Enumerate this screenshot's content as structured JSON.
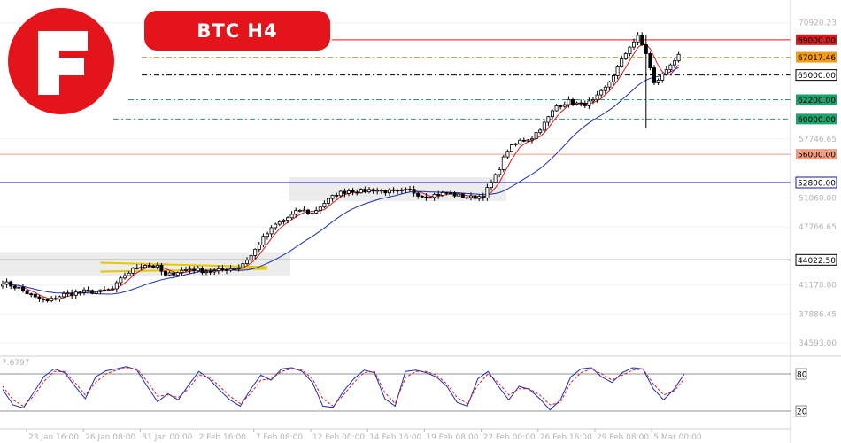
{
  "brand": {
    "color": "#e4141b"
  },
  "title": "BTC  H4",
  "chart_data": {
    "type": "candlestick",
    "symbol": "BTC",
    "timeframe": "H4",
    "price_ticks": [
      "70920.23",
      "57746.65",
      "51060.00",
      "47766.65",
      "41178.80",
      "37886.45",
      "34593.00"
    ],
    "price_range": [
      33300,
      72500
    ],
    "levels": [
      {
        "label": "69000.00",
        "price": 69000,
        "color": "#d9191e",
        "style": "solid"
      },
      {
        "label": "67017.46",
        "price": 67017,
        "color": "#f59b12",
        "style": "dashdot"
      },
      {
        "label": "65000.00",
        "price": 65000,
        "color": "#000000",
        "style": "dashdot"
      },
      {
        "label": "62200.00",
        "price": 62200,
        "color": "#1aa36a",
        "style": "dashdot"
      },
      {
        "label": "60000.00",
        "price": 60000,
        "color": "#1aa36a",
        "style": "dashdot"
      },
      {
        "label": "56000.00",
        "price": 56000,
        "color": "#f59c7f",
        "style": "solid"
      },
      {
        "label": "52800.00",
        "price": 52800,
        "color": "#1515b0",
        "style": "solid"
      },
      {
        "label": "44022.50",
        "price": 44022,
        "color": "#000000",
        "style": "solid"
      }
    ],
    "time_labels": [
      "23 Jan 16:00",
      "26 Jan 08:00",
      "31 Jan 00:00",
      "2 Feb 16:00",
      "7 Feb 08:00",
      "12 Feb 00:00",
      "14 Feb 16:00",
      "19 Feb 08:00",
      "22 Feb 00:00",
      "26 Feb 16:00",
      "29 Feb 08:00",
      "5 Mar 00:00"
    ],
    "price_path": [
      [
        0,
        41500
      ],
      [
        4,
        40800
      ],
      [
        8,
        39700
      ],
      [
        11,
        39300
      ],
      [
        15,
        40100
      ],
      [
        20,
        40400
      ],
      [
        24,
        40400
      ],
      [
        27,
        40700
      ],
      [
        30,
        42300
      ],
      [
        33,
        43200
      ],
      [
        35,
        43500
      ],
      [
        38,
        43200
      ],
      [
        40,
        42200
      ],
      [
        43,
        42700
      ],
      [
        46,
        43000
      ],
      [
        49,
        42800
      ],
      [
        52,
        42700
      ],
      [
        55,
        43000
      ],
      [
        58,
        43200
      ],
      [
        61,
        44500
      ],
      [
        64,
        46500
      ],
      [
        67,
        48000
      ],
      [
        70,
        48800
      ],
      [
        73,
        49700
      ],
      [
        76,
        49300
      ],
      [
        79,
        50500
      ],
      [
        82,
        51500
      ],
      [
        85,
        51900
      ],
      [
        88,
        51800
      ],
      [
        91,
        52000
      ],
      [
        94,
        51800
      ],
      [
        97,
        51700
      ],
      [
        100,
        51900
      ],
      [
        103,
        51300
      ],
      [
        106,
        51400
      ],
      [
        109,
        51600
      ],
      [
        112,
        51300
      ],
      [
        115,
        51100
      ],
      [
        118,
        51300
      ],
      [
        121,
        53500
      ],
      [
        124,
        56500
      ],
      [
        127,
        57500
      ],
      [
        130,
        57900
      ],
      [
        133,
        59500
      ],
      [
        136,
        61500
      ],
      [
        139,
        62000
      ],
      [
        142,
        61600
      ],
      [
        145,
        62000
      ],
      [
        148,
        63500
      ],
      [
        151,
        65800
      ],
      [
        154,
        68300
      ],
      [
        156,
        69300
      ],
      [
        158,
        67500
      ],
      [
        160,
        64000
      ],
      [
        162,
        65000
      ],
      [
        164,
        66300
      ],
      [
        166,
        67100
      ]
    ],
    "wicks": [
      {
        "x": 158,
        "high": 69500,
        "low": 59000
      }
    ],
    "consolidation_zones": [
      {
        "x": [
          0,
          70
        ],
        "price": [
          42200,
          44900
        ]
      },
      {
        "x": [
          71,
          123
        ],
        "price": [
          50700,
          53400
        ]
      }
    ],
    "triangle": {
      "color": "#e6c800",
      "upper": [
        [
          24,
          43700
        ],
        [
          65,
          43200
        ]
      ],
      "lower": [
        [
          24,
          42700
        ],
        [
          65,
          43000
        ]
      ]
    },
    "stochastic": {
      "levels": [
        {
          "label": "80",
          "value": 80
        },
        {
          "label": "20",
          "value": 20
        }
      ],
      "readout": "7.6797",
      "k": [
        55,
        30,
        25,
        50,
        76,
        88,
        82,
        60,
        40,
        75,
        85,
        88,
        92,
        86,
        60,
        35,
        48,
        38,
        62,
        84,
        72,
        54,
        38,
        28,
        55,
        78,
        70,
        88,
        90,
        84,
        66,
        28,
        26,
        52,
        72,
        86,
        82,
        40,
        28,
        84,
        86,
        82,
        75,
        60,
        34,
        28,
        72,
        84,
        60,
        38,
        60,
        55,
        40,
        22,
        38,
        75,
        88,
        90,
        75,
        66,
        82,
        90,
        88,
        56,
        38,
        55,
        80
      ],
      "d": [
        60,
        38,
        28,
        44,
        68,
        84,
        84,
        66,
        46,
        66,
        80,
        86,
        90,
        88,
        68,
        44,
        46,
        42,
        56,
        78,
        75,
        60,
        44,
        32,
        48,
        70,
        72,
        84,
        88,
        86,
        72,
        40,
        28,
        46,
        66,
        82,
        84,
        50,
        32,
        74,
        84,
        84,
        78,
        64,
        42,
        32,
        62,
        80,
        66,
        46,
        56,
        56,
        46,
        30,
        34,
        66,
        82,
        88,
        80,
        70,
        78,
        86,
        88,
        64,
        46,
        52,
        72
      ]
    }
  }
}
